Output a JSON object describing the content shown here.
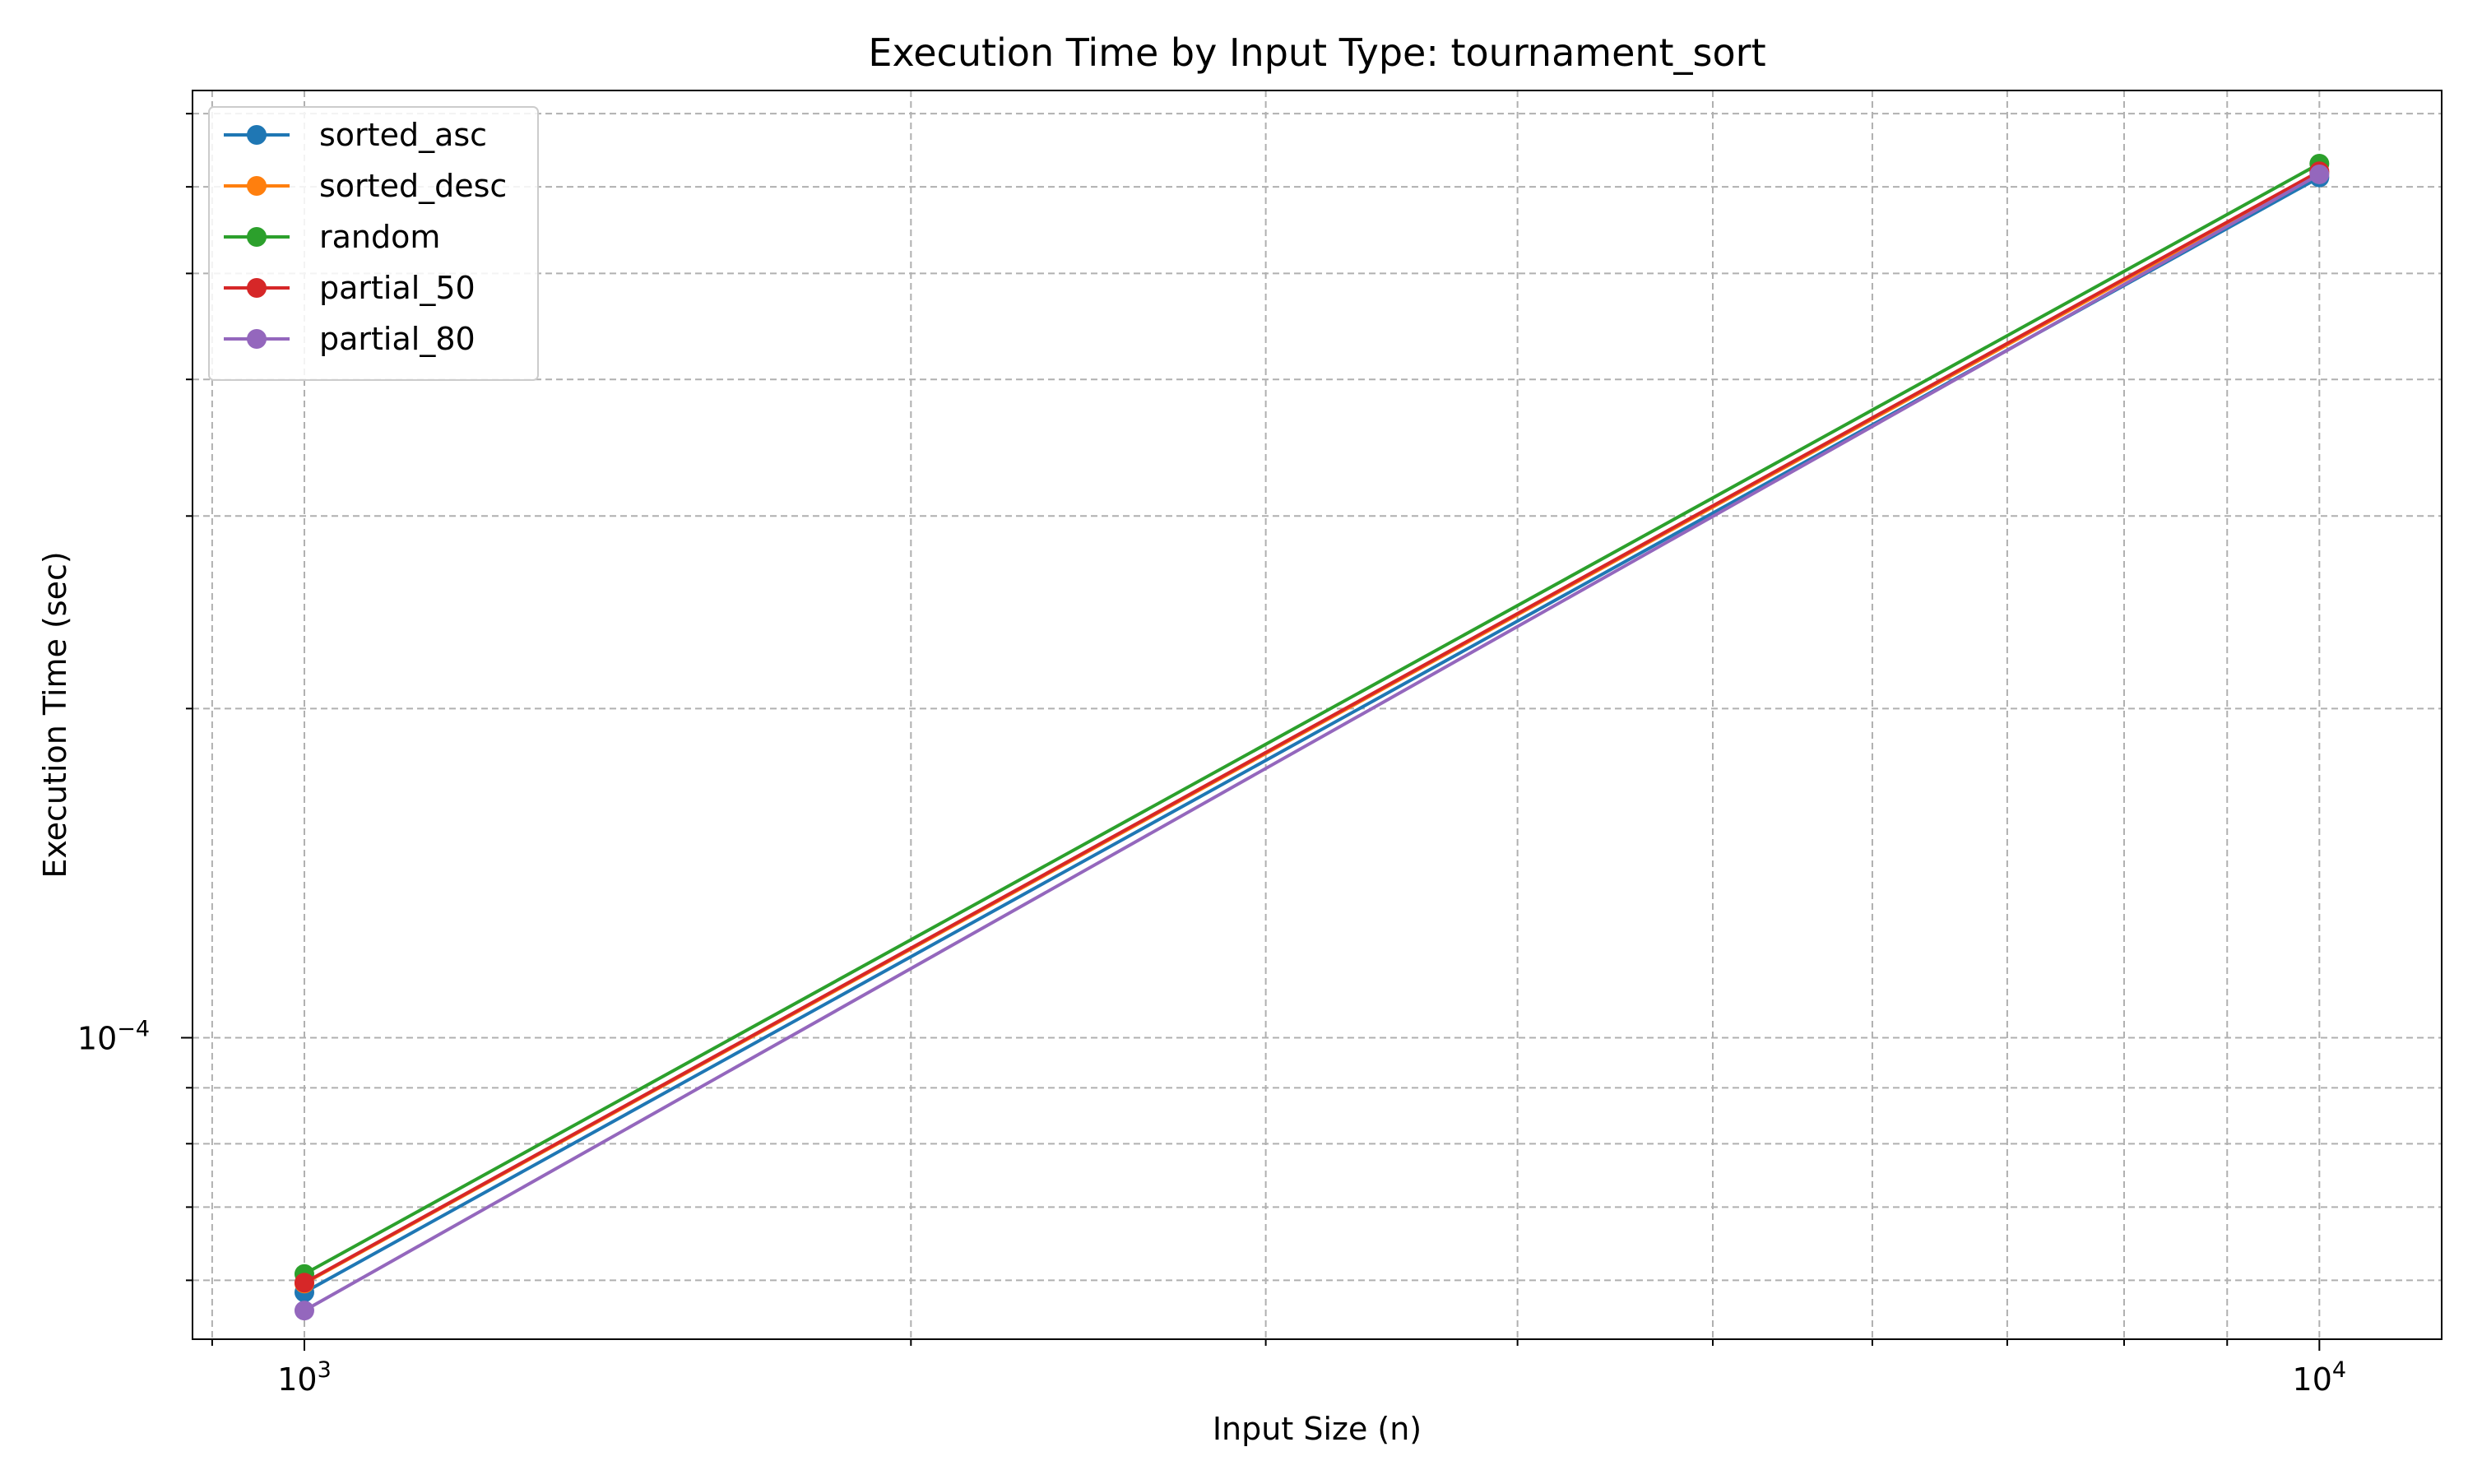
{
  "chart_data": {
    "type": "line",
    "title": "Execution Time by Input Type: tournament_sort",
    "xlabel": "Input Size (n)",
    "ylabel": "Execution Time (sec)",
    "x_scale": "log",
    "y_scale": "log",
    "xlim": [
      880,
      11500
    ],
    "ylim": [
      5.3e-05,
      0.000735
    ],
    "grid": true,
    "grid_style": "dashed",
    "legend_position": "top-left",
    "x_major_ticks": [
      {
        "value": 1000,
        "base": "10",
        "exp": "3"
      },
      {
        "value": 10000,
        "base": "10",
        "exp": "4"
      }
    ],
    "y_major_ticks": [
      {
        "value": 0.0001,
        "base": "10",
        "exp": "−4"
      }
    ],
    "x_minor_ticks": [
      900,
      2000,
      3000,
      4000,
      5000,
      6000,
      7000,
      8000,
      9000
    ],
    "y_minor_ticks": [
      6e-05,
      7e-05,
      8e-05,
      9e-05,
      0.0002,
      0.0003,
      0.0004,
      0.0005,
      0.0006,
      0.0007
    ],
    "x": [
      1000,
      10000
    ],
    "series": [
      {
        "name": "sorted_asc",
        "color": "#1f77b4",
        "values": [
          5.85e-05,
          0.000612
        ]
      },
      {
        "name": "sorted_desc",
        "color": "#ff7f0e",
        "values": [
          5.96e-05,
          0.000618
        ]
      },
      {
        "name": "random",
        "color": "#2ca02c",
        "values": [
          6.08e-05,
          0.00063
        ]
      },
      {
        "name": "partial_50",
        "color": "#d62728",
        "values": [
          5.97e-05,
          0.00062
        ]
      },
      {
        "name": "partial_80",
        "color": "#9467bd",
        "values": [
          5.63e-05,
          0.000616
        ]
      }
    ]
  }
}
